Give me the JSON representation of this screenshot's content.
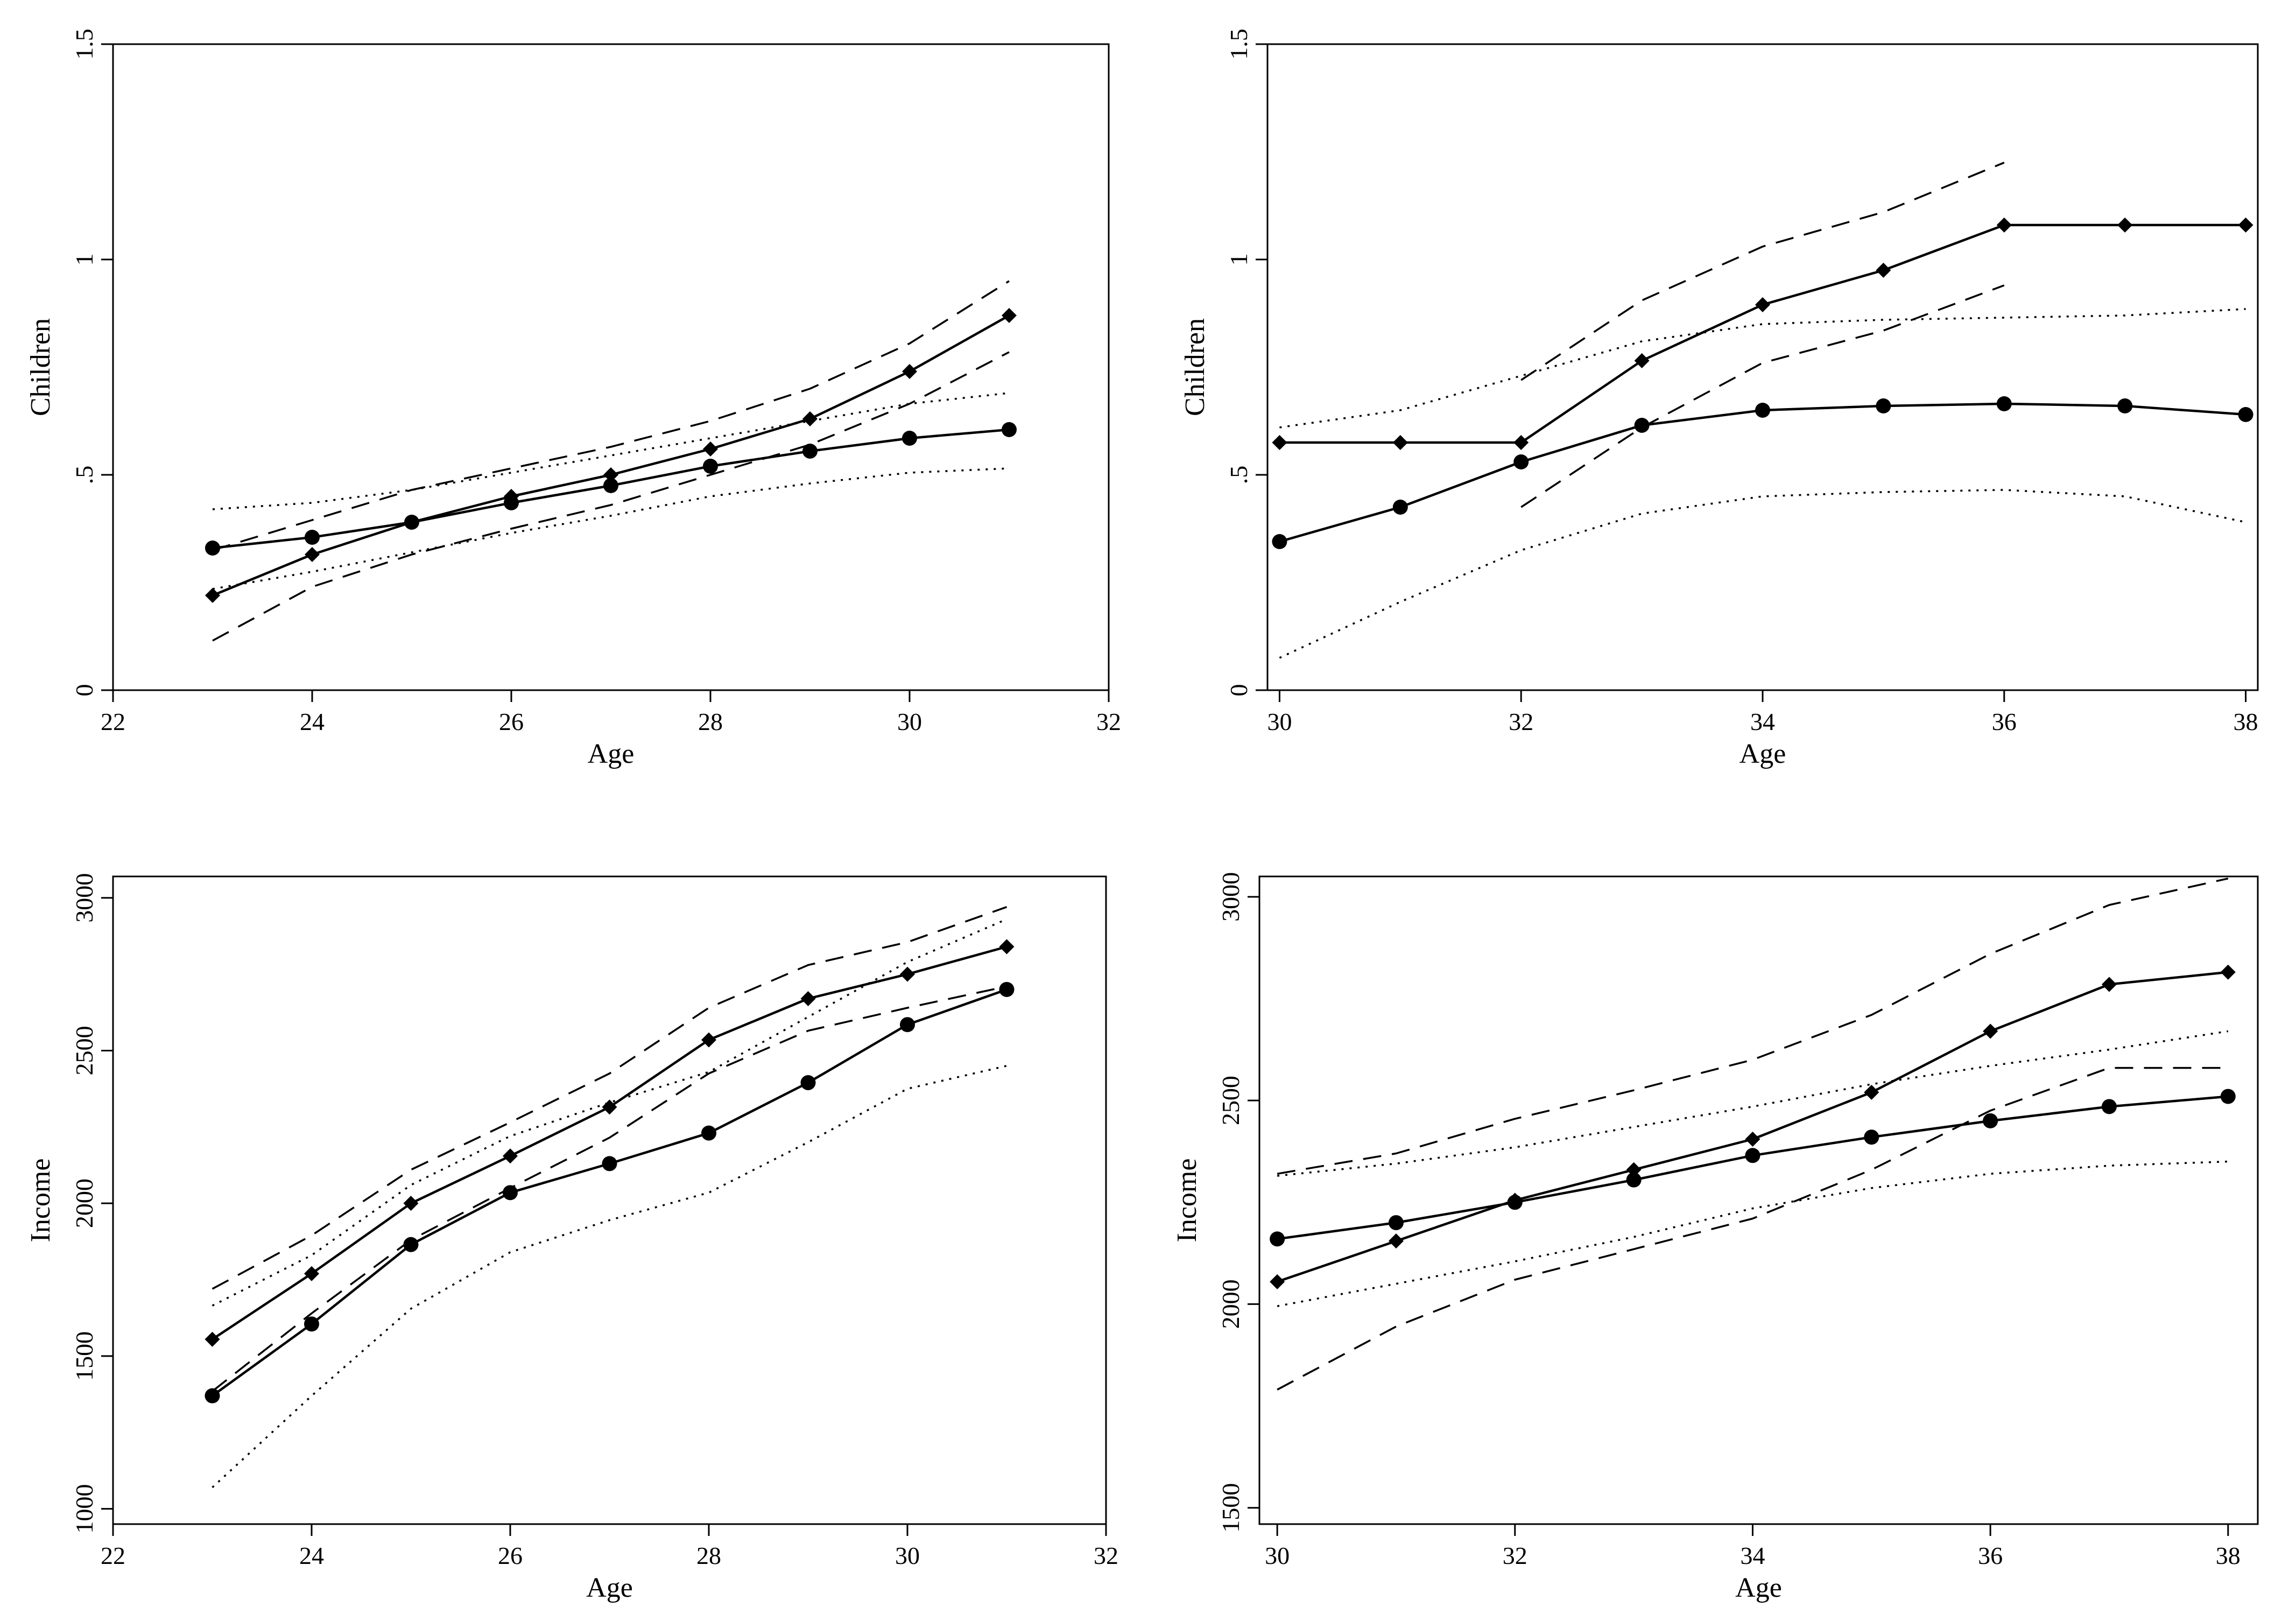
{
  "figure": {
    "panel_count": 4
  },
  "chart_data": [
    {
      "type": "line",
      "title": "",
      "xlabel": "Age",
      "ylabel": "Children",
      "xlim": [
        22,
        32
      ],
      "ylim": [
        0,
        1.5
      ],
      "xticks": [
        {
          "v": 22,
          "label": "22"
        },
        {
          "v": 24,
          "label": "24"
        },
        {
          "v": 26,
          "label": "26"
        },
        {
          "v": 28,
          "label": "28"
        },
        {
          "v": 30,
          "label": "30"
        },
        {
          "v": 32,
          "label": "32"
        }
      ],
      "yticks": [
        {
          "v": 0,
          "label": "0"
        },
        {
          "v": 0.5,
          "label": ".5"
        },
        {
          "v": 1,
          "label": "1"
        },
        {
          "v": 1.5,
          "label": "1.5"
        }
      ],
      "grid": false,
      "series": [
        {
          "marker": "diamond",
          "style": "solid",
          "x": [
            23,
            24,
            25,
            26,
            27,
            28,
            29,
            30,
            31
          ],
          "y": [
            0.22,
            0.315,
            0.39,
            0.45,
            0.5,
            0.56,
            0.63,
            0.74,
            0.87
          ]
        },
        {
          "marker": "circle",
          "style": "solid",
          "x": [
            23,
            24,
            25,
            26,
            27,
            28,
            29,
            30,
            31
          ],
          "y": [
            0.33,
            0.355,
            0.39,
            0.435,
            0.475,
            0.52,
            0.555,
            0.585,
            0.605
          ]
        },
        {
          "marker": "none",
          "style": "dashed",
          "x": [
            23,
            24,
            25,
            26,
            27,
            28,
            29,
            30,
            31
          ],
          "y": [
            0.325,
            0.395,
            0.465,
            0.515,
            0.565,
            0.625,
            0.7,
            0.805,
            0.95
          ]
        },
        {
          "marker": "none",
          "style": "dashed",
          "x": [
            23,
            24,
            25,
            26,
            27,
            28,
            29,
            30,
            31
          ],
          "y": [
            0.115,
            0.24,
            0.315,
            0.375,
            0.43,
            0.5,
            0.57,
            0.665,
            0.785
          ]
        },
        {
          "marker": "none",
          "style": "dotted",
          "x": [
            23,
            24,
            25,
            26,
            27,
            28,
            29,
            30,
            31
          ],
          "y": [
            0.42,
            0.435,
            0.465,
            0.505,
            0.545,
            0.585,
            0.625,
            0.665,
            0.69
          ]
        },
        {
          "marker": "none",
          "style": "dotted",
          "x": [
            23,
            24,
            25,
            26,
            27,
            28,
            29,
            30,
            31
          ],
          "y": [
            0.235,
            0.275,
            0.32,
            0.365,
            0.405,
            0.45,
            0.48,
            0.505,
            0.515
          ]
        }
      ]
    },
    {
      "type": "line",
      "title": "",
      "xlabel": "Age",
      "ylabel": "Children",
      "xlim": [
        29.9,
        38.1
      ],
      "ylim": [
        0,
        1.5
      ],
      "xticks": [
        {
          "v": 30,
          "label": "30"
        },
        {
          "v": 32,
          "label": "32"
        },
        {
          "v": 34,
          "label": "34"
        },
        {
          "v": 36,
          "label": "36"
        },
        {
          "v": 38,
          "label": "38"
        }
      ],
      "yticks": [
        {
          "v": 0,
          "label": "0"
        },
        {
          "v": 0.5,
          "label": ".5"
        },
        {
          "v": 1,
          "label": "1"
        },
        {
          "v": 1.5,
          "label": "1.5"
        }
      ],
      "grid": false,
      "series": [
        {
          "marker": "diamond",
          "style": "solid",
          "x": [
            30,
            31,
            32,
            33,
            34,
            35,
            36,
            37,
            38
          ],
          "y": [
            0.575,
            0.575,
            0.575,
            0.765,
            0.895,
            0.975,
            1.08,
            1.08,
            1.08
          ]
        },
        {
          "marker": "circle",
          "style": "solid",
          "x": [
            30,
            31,
            32,
            33,
            34,
            35,
            36,
            37,
            38
          ],
          "y": [
            0.345,
            0.425,
            0.53,
            0.615,
            0.65,
            0.66,
            0.665,
            0.66,
            0.64
          ]
        },
        {
          "marker": "none",
          "style": "dashed",
          "x": [
            32,
            33,
            34,
            35,
            36
          ],
          "y": [
            0.72,
            0.905,
            1.03,
            1.11,
            1.225
          ]
        },
        {
          "marker": "none",
          "style": "dashed",
          "x": [
            32,
            33,
            34,
            35,
            36
          ],
          "y": [
            0.425,
            0.61,
            0.76,
            0.835,
            0.94
          ]
        },
        {
          "marker": "none",
          "style": "dotted",
          "x": [
            30,
            31,
            32,
            33,
            34,
            35,
            36,
            37,
            38
          ],
          "y": [
            0.61,
            0.65,
            0.73,
            0.81,
            0.85,
            0.86,
            0.865,
            0.87,
            0.885
          ]
        },
        {
          "marker": "none",
          "style": "dotted",
          "x": [
            30,
            31,
            32,
            33,
            34,
            35,
            36,
            37,
            38
          ],
          "y": [
            0.075,
            0.205,
            0.325,
            0.41,
            0.45,
            0.46,
            0.465,
            0.45,
            0.39
          ]
        }
      ]
    },
    {
      "type": "line",
      "title": "",
      "xlabel": "Age",
      "ylabel": "Income",
      "xlim": [
        22,
        32
      ],
      "ylim": [
        950,
        3070
      ],
      "xticks": [
        {
          "v": 22,
          "label": "22"
        },
        {
          "v": 24,
          "label": "24"
        },
        {
          "v": 26,
          "label": "26"
        },
        {
          "v": 28,
          "label": "28"
        },
        {
          "v": 30,
          "label": "30"
        },
        {
          "v": 32,
          "label": "32"
        }
      ],
      "yticks": [
        {
          "v": 1000,
          "label": "1000"
        },
        {
          "v": 1500,
          "label": "1500"
        },
        {
          "v": 2000,
          "label": "2000"
        },
        {
          "v": 2500,
          "label": "2500"
        },
        {
          "v": 3000,
          "label": "3000"
        }
      ],
      "grid": false,
      "series": [
        {
          "marker": "diamond",
          "style": "solid",
          "x": [
            23,
            24,
            25,
            26,
            27,
            28,
            29,
            30,
            31
          ],
          "y": [
            1555,
            1770,
            2000,
            2155,
            2315,
            2535,
            2670,
            2750,
            2840
          ]
        },
        {
          "marker": "circle",
          "style": "solid",
          "x": [
            23,
            24,
            25,
            26,
            27,
            28,
            29,
            30,
            31
          ],
          "y": [
            1370,
            1605,
            1865,
            2035,
            2130,
            2230,
            2395,
            2585,
            2700
          ]
        },
        {
          "marker": "none",
          "style": "dashed",
          "x": [
            23,
            24,
            25,
            26,
            27,
            28,
            29,
            30,
            31
          ],
          "y": [
            1720,
            1895,
            2110,
            2265,
            2425,
            2640,
            2780,
            2855,
            2970
          ]
        },
        {
          "marker": "none",
          "style": "dashed",
          "x": [
            23,
            24,
            25,
            26,
            27,
            28,
            29,
            30,
            31
          ],
          "y": [
            1385,
            1640,
            1880,
            2050,
            2215,
            2425,
            2565,
            2640,
            2710
          ]
        },
        {
          "marker": "none",
          "style": "dotted",
          "x": [
            23,
            24,
            25,
            26,
            27,
            28,
            29,
            30,
            31
          ],
          "y": [
            1665,
            1830,
            2060,
            2220,
            2330,
            2430,
            2610,
            2790,
            2930
          ]
        },
        {
          "marker": "none",
          "style": "dotted",
          "x": [
            23,
            24,
            25,
            26,
            27,
            28,
            29,
            30,
            31
          ],
          "y": [
            1070,
            1370,
            1655,
            1840,
            1945,
            2035,
            2200,
            2375,
            2450
          ]
        }
      ]
    },
    {
      "type": "line",
      "title": "",
      "xlabel": "Age",
      "ylabel": "Income",
      "xlim": [
        29.85,
        38.25
      ],
      "ylim": [
        1460,
        3050
      ],
      "xticks": [
        {
          "v": 30,
          "label": "30"
        },
        {
          "v": 32,
          "label": "32"
        },
        {
          "v": 34,
          "label": "34"
        },
        {
          "v": 36,
          "label": "36"
        },
        {
          "v": 38,
          "label": "38"
        }
      ],
      "yticks": [
        {
          "v": 1500,
          "label": "1500"
        },
        {
          "v": 2000,
          "label": "2000"
        },
        {
          "v": 2500,
          "label": "2500"
        },
        {
          "v": 3000,
          "label": "3000"
        }
      ],
      "grid": false,
      "series": [
        {
          "marker": "diamond",
          "style": "solid",
          "x": [
            30,
            31,
            32,
            33,
            34,
            35,
            36,
            37,
            38
          ],
          "y": [
            2055,
            2155,
            2255,
            2330,
            2405,
            2520,
            2670,
            2785,
            2815
          ]
        },
        {
          "marker": "circle",
          "style": "solid",
          "x": [
            30,
            31,
            32,
            33,
            34,
            35,
            36,
            37,
            38
          ],
          "y": [
            2160,
            2200,
            2250,
            2305,
            2365,
            2410,
            2450,
            2485,
            2510
          ]
        },
        {
          "marker": "none",
          "style": "dashed",
          "x": [
            30,
            31,
            32,
            33,
            34,
            35,
            36,
            37,
            38
          ],
          "y": [
            2320,
            2370,
            2455,
            2525,
            2600,
            2710,
            2860,
            2980,
            3045
          ]
        },
        {
          "marker": "none",
          "style": "dashed",
          "x": [
            30,
            31,
            32,
            33,
            34,
            35,
            36,
            37,
            38
          ],
          "y": [
            1790,
            1945,
            2060,
            2135,
            2210,
            2330,
            2475,
            2580,
            2580
          ]
        },
        {
          "marker": "none",
          "style": "dotted",
          "x": [
            30,
            31,
            32,
            33,
            34,
            35,
            36,
            37,
            38
          ],
          "y": [
            2315,
            2345,
            2385,
            2435,
            2485,
            2540,
            2585,
            2625,
            2670
          ]
        },
        {
          "marker": "none",
          "style": "dotted",
          "x": [
            30,
            31,
            32,
            33,
            34,
            35,
            36,
            37,
            38
          ],
          "y": [
            1995,
            2050,
            2105,
            2165,
            2235,
            2285,
            2320,
            2340,
            2350
          ]
        }
      ]
    }
  ]
}
